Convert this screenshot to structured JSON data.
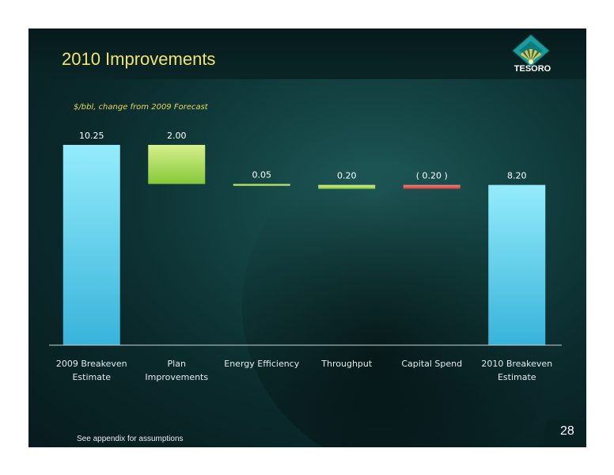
{
  "header": {
    "title": "2010 Improvements",
    "logo_text": "TESORO"
  },
  "subtitle": "$/bbl, change from 2009 Forecast",
  "footnote": "See appendix for assumptions",
  "page_number": "28",
  "colors": {
    "total_bar": "#8fe6f8",
    "increase_bar": "#b6e06a",
    "decrease_bar": "#e05a4e",
    "title": "#f2e56a",
    "subtitle": "#e7d65a"
  },
  "chart_data": {
    "type": "bar",
    "subtype": "waterfall",
    "categories": [
      [
        "2009 Breakeven",
        "Estimate"
      ],
      [
        "Plan",
        "Improvements"
      ],
      [
        "Energy Efficiency"
      ],
      [
        "Throughput"
      ],
      [
        "Capital Spend"
      ],
      [
        "2010 Breakeven",
        "Estimate"
      ]
    ],
    "values": [
      10.25,
      2.0,
      0.05,
      0.2,
      -0.2,
      8.2
    ],
    "labels": [
      "10.25",
      "2.00",
      "0.05",
      "0.20",
      "( 0.20 )",
      "8.20"
    ],
    "kinds": [
      "total",
      "step",
      "step",
      "step",
      "step",
      "total"
    ],
    "ylim": [
      0,
      10.25
    ],
    "grid": false
  }
}
